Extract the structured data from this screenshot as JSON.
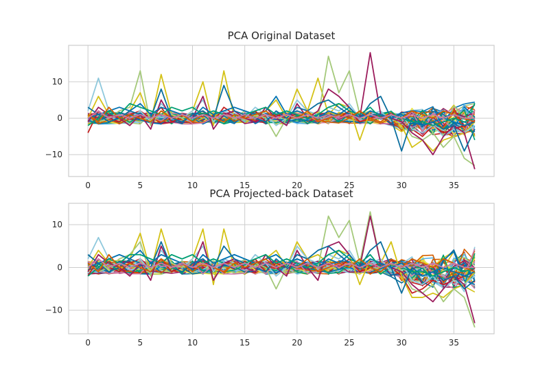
{
  "chart_data": [
    {
      "type": "line",
      "title": "PCA Original Dataset",
      "xlabel": "",
      "ylabel": "",
      "xlim": [
        -1.85,
        38.85
      ],
      "ylim": [
        -16,
        20
      ],
      "xticks": [
        0,
        5,
        10,
        15,
        20,
        25,
        30,
        35
      ],
      "yticks": [
        -10,
        0,
        10
      ],
      "ytick_labels": [
        "−10",
        "0",
        "10"
      ],
      "grid": true,
      "legend": "none",
      "n_points": 38,
      "colors": [
        "#0072B2",
        "#009E73",
        "#D55E00",
        "#CC79A7",
        "#F0E442",
        "#56B4E9",
        "#c41e1e",
        "#d4c217",
        "#8ec8dc",
        "#a4c97a",
        "#9b1b5b",
        "#0a6e9e"
      ],
      "series": [
        {
          "values": [
            -4,
            2,
            0,
            -1,
            1,
            2,
            0,
            3,
            -1,
            0,
            1,
            2,
            -1,
            3,
            1,
            0,
            2,
            -1,
            1,
            0,
            2,
            1,
            0,
            1,
            0,
            2,
            -1,
            0,
            1,
            0,
            -2,
            -3,
            -5,
            -2,
            -4,
            -3,
            -2,
            -1
          ]
        },
        {
          "values": [
            0,
            6,
            1,
            0,
            2,
            7,
            -1,
            12,
            1,
            0,
            2,
            10,
            -2,
            13,
            0,
            1,
            0,
            2,
            5,
            0,
            8,
            2,
            11,
            1,
            4,
            3,
            -6,
            2,
            1,
            0,
            -2,
            -8,
            -6,
            -9,
            -6,
            -5,
            -4,
            -1
          ]
        },
        {
          "values": [
            2,
            11,
            2,
            1,
            0,
            2,
            -1,
            4,
            1,
            0,
            2,
            5,
            -1,
            2,
            1,
            0,
            3,
            1,
            -2,
            0,
            5,
            2,
            1,
            3,
            2,
            4,
            0,
            1,
            2,
            -1,
            1,
            -3,
            -4,
            -2,
            -5,
            -3,
            -4,
            -2
          ]
        },
        {
          "values": [
            1,
            -1,
            0,
            2,
            3,
            13,
            -2,
            2,
            1,
            0,
            1,
            2,
            0,
            1,
            0,
            2,
            1,
            0,
            -5,
            0,
            2,
            1,
            0,
            17,
            7,
            13,
            1,
            2,
            1,
            0,
            -1,
            -5,
            -6,
            -4,
            -8,
            -5,
            -11,
            -13
          ]
        },
        {
          "values": [
            -1,
            3,
            1,
            0,
            -2,
            1,
            -3,
            5,
            0,
            1,
            0,
            6,
            -3,
            1,
            2,
            0,
            -1,
            3,
            0,
            -2,
            4,
            0,
            2,
            8,
            6,
            3,
            0,
            18,
            1,
            0,
            -1,
            -4,
            -6,
            -10,
            -5,
            -2,
            -4,
            -14
          ]
        },
        {
          "values": [
            3,
            1,
            -1,
            0,
            2,
            1,
            0,
            8,
            0,
            -1,
            1,
            2,
            0,
            9,
            2,
            1,
            0,
            -1,
            2,
            0,
            3,
            2,
            4,
            5,
            3,
            1,
            0,
            4,
            6,
            0,
            -9,
            0,
            -2,
            -1,
            -3,
            -2,
            -9,
            -3
          ]
        },
        {
          "values": [
            0,
            1,
            2,
            3,
            2,
            4,
            1,
            3,
            2,
            1,
            0,
            3,
            1,
            2,
            3,
            2,
            1,
            2,
            6,
            1,
            2,
            1,
            0,
            2,
            1,
            3,
            0,
            2,
            1,
            0,
            1,
            -1,
            -2,
            -1,
            0,
            -1,
            -2,
            -1
          ]
        },
        {
          "values": [
            -2,
            0,
            2,
            1,
            4,
            3,
            2,
            1,
            3,
            2,
            3,
            1,
            2,
            1,
            0,
            1,
            2,
            3,
            1,
            2,
            1,
            0,
            1,
            3,
            4,
            2,
            1,
            3,
            0,
            1,
            0,
            -1,
            -1,
            -2,
            -1,
            0,
            -1,
            0
          ]
        },
        {
          "values": [
            1,
            -1,
            3,
            0,
            1,
            0,
            -1,
            2,
            0,
            1,
            -1,
            1,
            0,
            -1,
            1,
            0,
            1,
            2,
            0,
            1,
            0,
            2,
            -1,
            0,
            1,
            0,
            2,
            0,
            -1,
            1,
            0,
            2,
            1,
            0,
            2,
            1,
            0,
            -1
          ]
        },
        {
          "values": [
            0,
            2,
            0,
            1,
            0,
            1,
            0,
            1,
            0,
            1,
            0,
            1,
            0,
            1,
            0,
            1,
            0,
            1,
            0,
            1,
            0,
            1,
            0,
            1,
            0,
            1,
            0,
            1,
            0,
            1,
            0,
            1,
            0,
            1,
            0,
            1,
            0,
            0
          ]
        }
      ]
    },
    {
      "type": "line",
      "title": "PCA Projected-back Dataset",
      "xlabel": "",
      "ylabel": "",
      "xlim": [
        -1.85,
        38.85
      ],
      "ylim": [
        -15.5,
        15
      ],
      "xticks": [
        0,
        5,
        10,
        15,
        20,
        25,
        30,
        35
      ],
      "yticks": [
        -10,
        0,
        10
      ],
      "ytick_labels": [
        "−10",
        "0",
        "10"
      ],
      "grid": true,
      "legend": "none",
      "n_points": 38,
      "colors": [
        "#0072B2",
        "#009E73",
        "#D55E00",
        "#CC79A7",
        "#F0E442",
        "#56B4E9",
        "#c41e1e",
        "#d4c217",
        "#8ec8dc",
        "#a4c97a",
        "#9b1b5b",
        "#0a6e9e"
      ],
      "series": [
        {
          "values": [
            -2,
            2,
            0,
            -1,
            1,
            2,
            0,
            2,
            -1,
            0,
            1,
            2,
            -1,
            2,
            1,
            0,
            2,
            -1,
            1,
            0,
            2,
            1,
            0,
            1,
            0,
            2,
            -1,
            0,
            1,
            0,
            -2,
            -6,
            -5,
            -3,
            -4,
            -3,
            -2,
            -1
          ]
        },
        {
          "values": [
            0,
            4,
            1,
            0,
            2,
            8,
            -1,
            9,
            1,
            0,
            2,
            9,
            -4,
            9,
            0,
            1,
            0,
            2,
            4,
            0,
            6,
            2,
            3,
            1,
            4,
            3,
            -4,
            2,
            1,
            6,
            -2,
            -7,
            -7,
            -6,
            -7,
            -5,
            -4,
            -1
          ]
        },
        {
          "values": [
            2,
            7,
            2,
            1,
            0,
            2,
            -1,
            4,
            1,
            0,
            2,
            5,
            -1,
            2,
            1,
            0,
            3,
            1,
            -2,
            0,
            5,
            2,
            1,
            3,
            2,
            4,
            0,
            1,
            2,
            -1,
            1,
            -3,
            -4,
            -2,
            -5,
            -3,
            -4,
            -2
          ]
        },
        {
          "values": [
            1,
            -1,
            0,
            2,
            3,
            6,
            -2,
            2,
            1,
            0,
            1,
            2,
            0,
            1,
            0,
            2,
            1,
            0,
            -5,
            0,
            2,
            1,
            0,
            12,
            7,
            11,
            1,
            13,
            1,
            0,
            -1,
            -5,
            -6,
            -4,
            -8,
            -5,
            -7,
            -14
          ]
        },
        {
          "values": [
            -1,
            3,
            1,
            0,
            -2,
            1,
            -3,
            5,
            0,
            1,
            0,
            6,
            -3,
            1,
            2,
            0,
            -1,
            3,
            0,
            -2,
            4,
            0,
            -3,
            5,
            6,
            3,
            0,
            12,
            1,
            0,
            -1,
            -4,
            -6,
            -8,
            -5,
            -2,
            -4,
            -13
          ]
        },
        {
          "values": [
            3,
            1,
            -1,
            0,
            2,
            1,
            0,
            6,
            0,
            -1,
            1,
            2,
            0,
            5,
            2,
            1,
            0,
            -1,
            2,
            0,
            3,
            2,
            4,
            5,
            3,
            1,
            0,
            4,
            6,
            0,
            -6,
            0,
            -2,
            -1,
            -3,
            -2,
            -5,
            -3
          ]
        },
        {
          "values": [
            0,
            1,
            2,
            3,
            2,
            4,
            1,
            3,
            2,
            1,
            0,
            3,
            1,
            2,
            3,
            2,
            1,
            2,
            3,
            1,
            2,
            1,
            0,
            2,
            1,
            3,
            0,
            2,
            1,
            0,
            1,
            -1,
            -2,
            -1,
            0,
            -1,
            -2,
            -1
          ]
        },
        {
          "values": [
            -2,
            0,
            2,
            1,
            3,
            3,
            2,
            1,
            3,
            2,
            3,
            1,
            2,
            1,
            0,
            1,
            2,
            3,
            1,
            2,
            1,
            0,
            1,
            3,
            4,
            2,
            1,
            3,
            0,
            1,
            0,
            -1,
            -1,
            -2,
            -1,
            0,
            -1,
            0
          ]
        },
        {
          "values": [
            1,
            -1,
            3,
            0,
            1,
            0,
            -1,
            2,
            0,
            1,
            -1,
            1,
            0,
            -1,
            1,
            0,
            1,
            2,
            0,
            1,
            0,
            2,
            -1,
            0,
            1,
            0,
            2,
            0,
            -1,
            1,
            0,
            2,
            1,
            0,
            2,
            1,
            0,
            -1
          ]
        },
        {
          "values": [
            0,
            2,
            0,
            1,
            0,
            1,
            0,
            1,
            0,
            1,
            0,
            1,
            0,
            1,
            0,
            1,
            0,
            1,
            0,
            1,
            0,
            1,
            0,
            1,
            0,
            1,
            0,
            1,
            0,
            1,
            0,
            1,
            0,
            1,
            0,
            1,
            0,
            0
          ]
        }
      ]
    }
  ]
}
